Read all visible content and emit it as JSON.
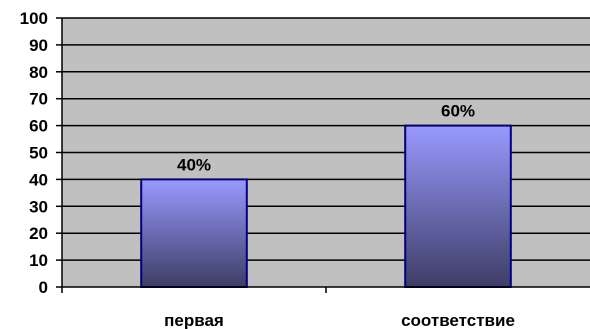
{
  "chart_data": {
    "type": "bar",
    "categories": [
      "первая",
      "соответствие"
    ],
    "values": [
      40,
      60
    ],
    "data_labels": [
      "40%",
      "60%"
    ],
    "ylim": [
      0,
      100
    ],
    "yticks": [
      "0",
      "10",
      "20",
      "30",
      "40",
      "50",
      "60",
      "70",
      "80",
      "90",
      "100"
    ],
    "grid": true,
    "legend": "none",
    "colors": {
      "plot_background": "#c0c0c0",
      "bar_top": "#9999ff",
      "bar_bottom": "#3d3d66",
      "bar_border": "#000080",
      "gridline": "#000000"
    }
  }
}
